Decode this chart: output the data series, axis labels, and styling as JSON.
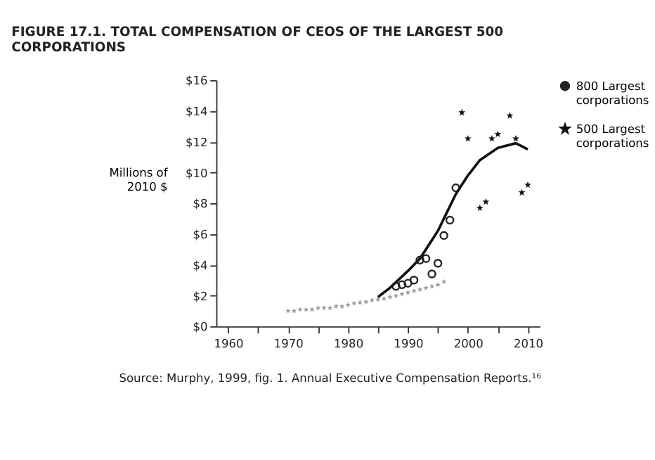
{
  "chart_data": {
    "type": "scatter",
    "title": "FIGURE 17.1. TOTAL COMPENSATION OF CEOS OF THE LARGEST 500 CORPORATIONS",
    "ylabel": "Millions of 2010 $",
    "annotations": [
      "Source: Murphy, 1999, fig. 1. Annual Executive Compensation Reports.¹⁶"
    ],
    "xlim": [
      1958,
      2012
    ],
    "xticks": [
      1960,
      {
        "value": 1965,
        "label": null
      },
      1970,
      {
        "value": 1975,
        "label": null
      },
      1980,
      {
        "value": 1985,
        "label": null
      },
      1990,
      {
        "value": 1995,
        "label": null
      },
      2000,
      {
        "value": 2005,
        "label": null
      },
      2010
    ],
    "ylim": [
      0,
      16
    ],
    "yticks": [
      {
        "value": 0,
        "label": "$0"
      },
      {
        "value": 2,
        "label": "$2"
      },
      {
        "value": 4,
        "label": "$4"
      },
      {
        "value": 6,
        "label": "$6"
      },
      {
        "value": 8,
        "label": "$8"
      },
      {
        "value": 10,
        "label": "$10"
      },
      {
        "value": 12,
        "label": "$12"
      },
      {
        "value": 14,
        "label": "$14"
      },
      {
        "value": 16,
        "label": "$16"
      }
    ],
    "legend": "right",
    "series": [
      {
        "marker": "star",
        "color": "#9a9a9a",
        "x": [
          1970,
          1971,
          1972,
          1973,
          1974,
          1975,
          1976,
          1977,
          1978,
          1979,
          1980,
          1981,
          1982,
          1983,
          1984,
          1985,
          1986,
          1987,
          1988,
          1989,
          1990,
          1991,
          1992,
          1993,
          1994,
          1995,
          1996
        ],
        "values": [
          1.0,
          1.0,
          1.1,
          1.1,
          1.1,
          1.2,
          1.2,
          1.2,
          1.3,
          1.3,
          1.4,
          1.5,
          1.55,
          1.6,
          1.7,
          1.75,
          1.8,
          1.9,
          2.0,
          2.1,
          2.2,
          2.3,
          2.4,
          2.5,
          2.6,
          2.7,
          2.9
        ]
      },
      {
        "marker": "circle",
        "name": "800 Largest corporations",
        "color": "#222222",
        "x": [
          1988,
          1989,
          1990,
          1991,
          1992,
          1993,
          1994,
          1995,
          1996,
          1997,
          1998
        ],
        "values": [
          2.6,
          2.7,
          2.8,
          3.0,
          4.3,
          4.4,
          3.4,
          4.1,
          5.9,
          6.9,
          9.0
        ]
      },
      {
        "marker": "star",
        "name": "500 Largest corporations",
        "color": "#111111",
        "x": [
          1999,
          2000,
          2002,
          2003,
          2004,
          2005,
          2007,
          2008,
          2009,
          2010
        ],
        "values": [
          13.9,
          12.2,
          7.7,
          8.1,
          12.2,
          12.5,
          13.7,
          12.2,
          8.7,
          9.2
        ]
      },
      {
        "type": "line",
        "color": "#111111",
        "x": [
          1985,
          1987,
          1990,
          1992,
          1995,
          1998,
          2000,
          2002,
          2005,
          2008,
          2010
        ],
        "values": [
          1.9,
          2.5,
          3.6,
          4.4,
          6.2,
          8.6,
          9.8,
          10.8,
          11.6,
          11.9,
          11.5
        ]
      }
    ]
  }
}
